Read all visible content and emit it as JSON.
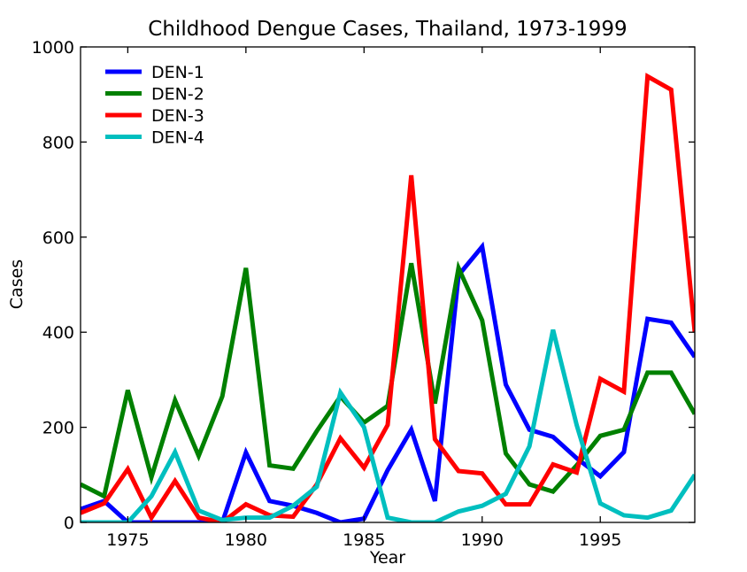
{
  "chart_data": {
    "type": "line",
    "title": "Childhood Dengue Cases, Thailand, 1973-1999",
    "xlabel": "Year",
    "ylabel": "Cases",
    "xlim": [
      1973,
      1999
    ],
    "ylim": [
      0,
      1000
    ],
    "xticks": [
      1975,
      1980,
      1985,
      1990,
      1995
    ],
    "yticks": [
      0,
      200,
      400,
      600,
      800,
      1000
    ],
    "grid": false,
    "legend_position": "top-left",
    "x": [
      1973,
      1974,
      1975,
      1976,
      1977,
      1978,
      1979,
      1980,
      1981,
      1982,
      1983,
      1984,
      1985,
      1986,
      1987,
      1988,
      1989,
      1990,
      1991,
      1992,
      1993,
      1994,
      1995,
      1996,
      1997,
      1998,
      1999
    ],
    "series": [
      {
        "name": "DEN-1",
        "color": "#0000ff",
        "values": [
          28,
          45,
          0,
          0,
          0,
          0,
          0,
          147,
          45,
          35,
          20,
          0,
          8,
          110,
          195,
          45,
          520,
          580,
          290,
          195,
          180,
          135,
          97,
          148,
          428,
          420,
          348
        ]
      },
      {
        "name": "DEN-2",
        "color": "#008000",
        "values": [
          80,
          55,
          278,
          95,
          257,
          140,
          265,
          535,
          120,
          113,
          192,
          265,
          210,
          245,
          545,
          250,
          535,
          425,
          145,
          80,
          65,
          120,
          182,
          195,
          315,
          315,
          228
        ]
      },
      {
        "name": "DEN-3",
        "color": "#ff0000",
        "values": [
          20,
          40,
          112,
          10,
          87,
          10,
          0,
          38,
          15,
          12,
          80,
          177,
          115,
          205,
          730,
          175,
          108,
          103,
          38,
          38,
          122,
          105,
          302,
          275,
          938,
          910,
          400
        ]
      },
      {
        "name": "DEN-4",
        "color": "#00bfbf",
        "values": [
          0,
          0,
          0,
          55,
          148,
          25,
          5,
          10,
          10,
          35,
          75,
          273,
          200,
          10,
          0,
          0,
          23,
          35,
          60,
          160,
          405,
          205,
          40,
          15,
          10,
          25,
          100
        ]
      }
    ]
  }
}
